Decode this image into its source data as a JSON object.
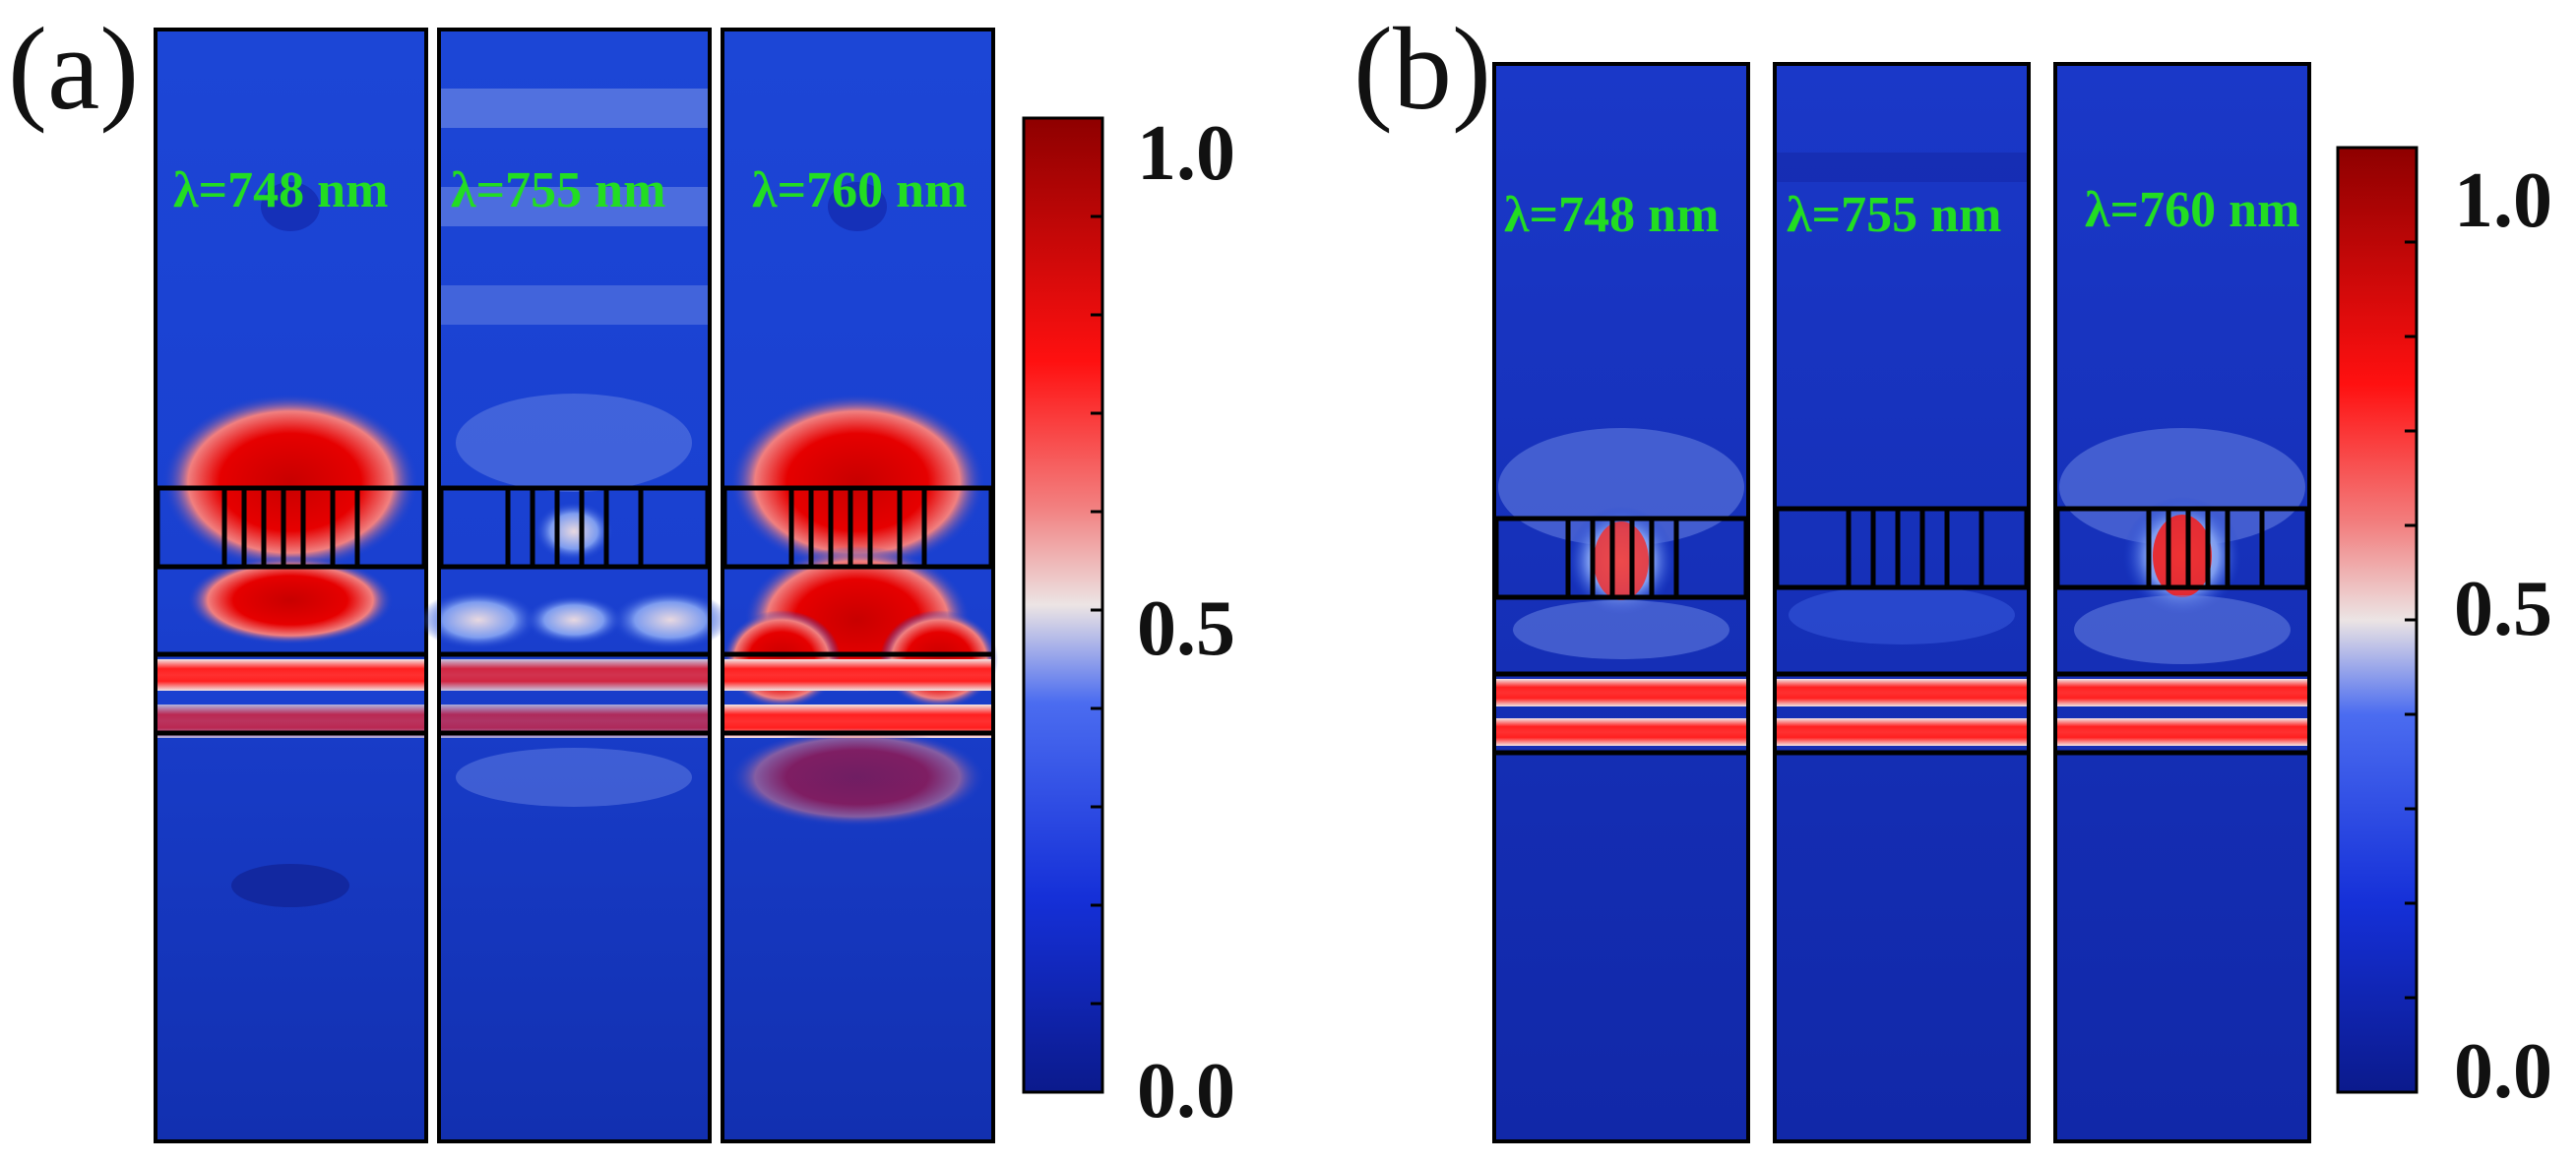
{
  "figure": {
    "panels": [
      {
        "label": "(a)",
        "maps": [
          {
            "wavelength_label": "λ=748 nm",
            "intensity": "high"
          },
          {
            "wavelength_label": "λ=755 nm",
            "intensity": "low"
          },
          {
            "wavelength_label": "λ=760 nm",
            "intensity": "high"
          }
        ],
        "colorbar": {
          "ticks": [
            "1.0",
            "0.5",
            "0.0"
          ],
          "range": [
            0.0,
            1.0
          ]
        }
      },
      {
        "label": "(b)",
        "maps": [
          {
            "wavelength_label": "λ=748 nm",
            "intensity": "high"
          },
          {
            "wavelength_label": "λ=755 nm",
            "intensity": "low"
          },
          {
            "wavelength_label": "λ=760 nm",
            "intensity": "high"
          }
        ],
        "colorbar": {
          "ticks": [
            "1.0",
            "0.5",
            "0.0"
          ],
          "range": [
            0.0,
            1.0
          ]
        }
      }
    ],
    "colors": {
      "map_background": "#1a3fd0",
      "map_deep": "#0d1f9a",
      "hot": "#d40000",
      "hot_dark": "#9e0000",
      "mid": "#f0dcdc",
      "outline": "#000000",
      "label_green": "#22dd22"
    }
  }
}
